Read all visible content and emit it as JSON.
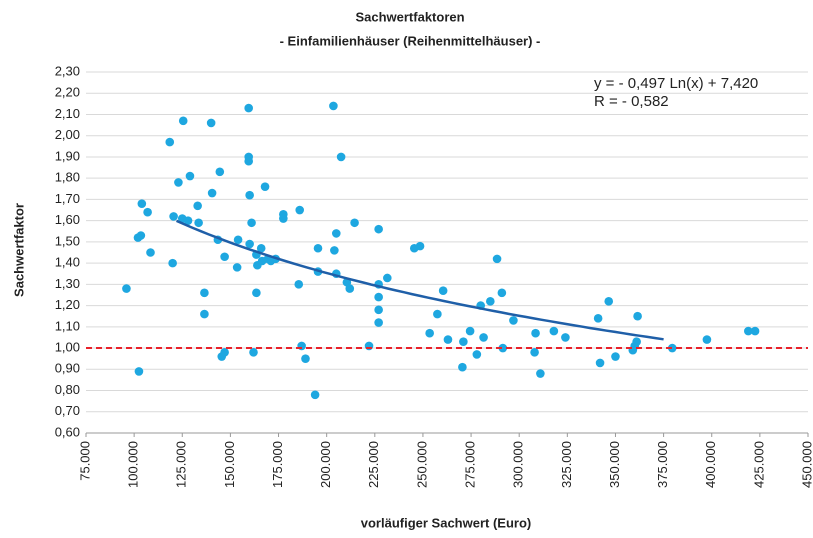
{
  "chart_data": {
    "type": "scatter",
    "title": "Sachwertfaktoren",
    "subtitle": "- Einfamilienhäuser (Reihenmittelhäuser) -",
    "x_label": "vorläufiger Sachwert (Euro)",
    "y_label": "Sachwertfaktor",
    "annotations": [
      "y = - 0,497 Ln(x) + 7,420",
      "R = - 0,582"
    ],
    "color": "#1ea7e0",
    "x": [
      96000,
      102500,
      102000,
      103500,
      104000,
      107000,
      108500,
      118500,
      120000,
      120500,
      123000,
      125500,
      125000,
      128000,
      129000,
      133000,
      133500,
      136500,
      136500,
      140000,
      140500,
      143500,
      144500,
      145500,
      147000,
      147000,
      153500,
      154000,
      159500,
      159500,
      159500,
      160000,
      161000,
      160000,
      162000,
      163500,
      164000,
      163500,
      166000,
      166500,
      168000,
      169500,
      171000,
      173500,
      177500,
      177500,
      186000,
      185500,
      187000,
      189000,
      194000,
      195500,
      195500,
      203500,
      204000,
      205000,
      205000,
      207500,
      210500,
      212000,
      214500,
      222000,
      227000,
      227000,
      227000,
      227000,
      227000,
      231500,
      245500,
      248500,
      253500,
      257500,
      260500,
      263000,
      271000,
      270500,
      274500,
      278000,
      280000,
      281500,
      285000,
      288500,
      291000,
      291500,
      297000,
      308500,
      308000,
      311000,
      318000,
      324000,
      341000,
      342000,
      346500,
      350000,
      359000,
      360000,
      361000,
      361500,
      379500,
      397500,
      419000,
      422500
    ],
    "values": [
      1.28,
      0.89,
      1.52,
      1.53,
      1.68,
      1.64,
      1.45,
      1.97,
      1.4,
      1.62,
      1.78,
      2.07,
      1.61,
      1.6,
      1.81,
      1.67,
      1.59,
      1.26,
      1.16,
      2.06,
      1.73,
      1.51,
      1.83,
      0.96,
      0.98,
      1.43,
      1.38,
      1.51,
      2.13,
      1.9,
      1.88,
      1.72,
      1.59,
      1.49,
      0.98,
      1.26,
      1.39,
      1.44,
      1.47,
      1.41,
      1.76,
      1.42,
      1.41,
      1.42,
      1.63,
      1.61,
      1.65,
      1.3,
      1.01,
      0.95,
      0.78,
      1.47,
      1.36,
      2.14,
      1.46,
      1.35,
      1.54,
      1.9,
      1.31,
      1.28,
      1.59,
      1.01,
      1.56,
      1.3,
      1.24,
      1.18,
      1.12,
      1.33,
      1.47,
      1.48,
      1.07,
      1.16,
      1.27,
      1.04,
      1.03,
      0.91,
      1.08,
      0.97,
      1.2,
      1.05,
      1.22,
      1.42,
      1.26,
      1.0,
      1.13,
      1.07,
      0.98,
      0.88,
      1.08,
      1.05,
      1.14,
      0.93,
      1.22,
      0.96,
      0.99,
      1.01,
      1.03,
      1.15,
      1.0,
      1.04,
      1.08,
      1.08
    ],
    "trendline": {
      "a": -0.497,
      "b": 7.42,
      "x_range": [
        122000,
        375000
      ],
      "color": "#1f5fa8"
    },
    "reference_line": {
      "y": 1,
      "color": "#e8212a"
    },
    "xlim": [
      75000,
      450000
    ],
    "xticks": [
      {
        "value": 75000,
        "label": "75.000"
      },
      {
        "value": 100000,
        "label": "100.000"
      },
      {
        "value": 125000,
        "label": "125.000"
      },
      {
        "value": 150000,
        "label": "150.000"
      },
      {
        "value": 175000,
        "label": "175.000"
      },
      {
        "value": 200000,
        "label": "200.000"
      },
      {
        "value": 225000,
        "label": "225.000"
      },
      {
        "value": 250000,
        "label": "250.000"
      },
      {
        "value": 275000,
        "label": "275.000"
      },
      {
        "value": 300000,
        "label": "300.000"
      },
      {
        "value": 325000,
        "label": "325.000"
      },
      {
        "value": 350000,
        "label": "350.000"
      },
      {
        "value": 375000,
        "label": "375.000"
      },
      {
        "value": 400000,
        "label": "400.000"
      },
      {
        "value": 425000,
        "label": "425.000"
      },
      {
        "value": 450000,
        "label": "450.000"
      }
    ],
    "ylim": [
      0.6,
      2.3
    ],
    "yticks": [
      {
        "value": 0.6,
        "label": "0,60"
      },
      {
        "value": 0.7,
        "label": "0,70"
      },
      {
        "value": 0.8,
        "label": "0,80"
      },
      {
        "value": 0.9,
        "label": "0,90"
      },
      {
        "value": 1.0,
        "label": "1,00"
      },
      {
        "value": 1.1,
        "label": "1,10"
      },
      {
        "value": 1.2,
        "label": "1,20"
      },
      {
        "value": 1.3,
        "label": "1,30"
      },
      {
        "value": 1.4,
        "label": "1,40"
      },
      {
        "value": 1.5,
        "label": "1,50"
      },
      {
        "value": 1.6,
        "label": "1,60"
      },
      {
        "value": 1.7,
        "label": "1,70"
      },
      {
        "value": 1.8,
        "label": "1,80"
      },
      {
        "value": 1.9,
        "label": "1,90"
      },
      {
        "value": 2.0,
        "label": "2,00"
      },
      {
        "value": 2.1,
        "label": "2,10"
      },
      {
        "value": 2.2,
        "label": "2,20"
      },
      {
        "value": 2.3,
        "label": "2,30"
      }
    ],
    "grid": true
  }
}
